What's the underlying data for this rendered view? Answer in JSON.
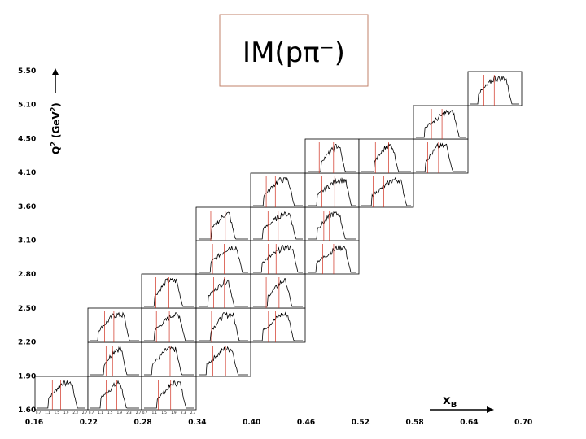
{
  "title": "IM(pπ⁻)",
  "y_axis": {
    "label": "Q",
    "label_sup": "2",
    "unit_open": " (GeV",
    "unit_sup": "2",
    "unit_close": ")",
    "ticks": [
      "5.50",
      "5.10",
      "4.50",
      "4.10",
      "3.60",
      "3.10",
      "2.80",
      "2.50",
      "2.20",
      "1.90",
      "1.60"
    ]
  },
  "x_axis": {
    "label": "x",
    "label_sub": "B",
    "ticks": [
      "0.16",
      "0.22",
      "0.28",
      "0.34",
      "0.40",
      "0.46",
      "0.52",
      "0.58",
      "0.64",
      "0.70"
    ]
  },
  "panel_ticks": [
    "0.7",
    "1.1",
    "1.5",
    "1.9",
    "2.3",
    "2.7"
  ]
}
